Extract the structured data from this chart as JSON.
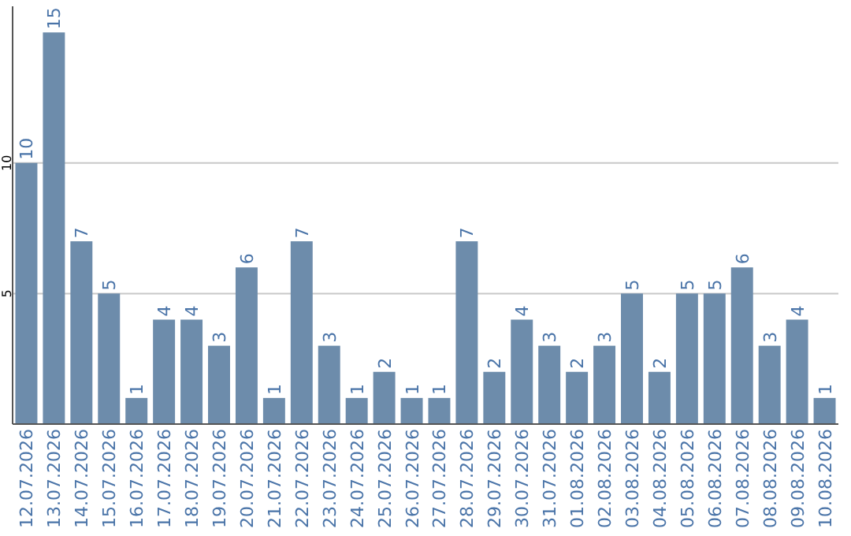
{
  "chart_data": {
    "type": "bar",
    "categories": [
      "12.07.2026",
      "13.07.2026",
      "14.07.2026",
      "15.07.2026",
      "16.07.2026",
      "17.07.2026",
      "18.07.2026",
      "19.07.2026",
      "20.07.2026",
      "21.07.2026",
      "22.07.2026",
      "23.07.2026",
      "24.07.2026",
      "25.07.2026",
      "26.07.2026",
      "27.07.2026",
      "28.07.2026",
      "29.07.2026",
      "30.07.2026",
      "31.07.2026",
      "01.08.2026",
      "02.08.2026",
      "03.08.2026",
      "04.08.2026",
      "05.08.2026",
      "06.08.2026",
      "07.08.2026",
      "08.08.2026",
      "09.08.2026",
      "10.08.2026"
    ],
    "values": [
      10,
      15,
      7,
      5,
      1,
      4,
      4,
      3,
      6,
      1,
      7,
      3,
      1,
      2,
      1,
      1,
      7,
      2,
      4,
      3,
      2,
      3,
      5,
      2,
      5,
      5,
      6,
      3,
      4,
      1
    ],
    "color": "#6d8cab",
    "ylim": [
      0,
      16
    ],
    "yticks": [
      5,
      10
    ],
    "grid": "y",
    "data_labels": true
  }
}
